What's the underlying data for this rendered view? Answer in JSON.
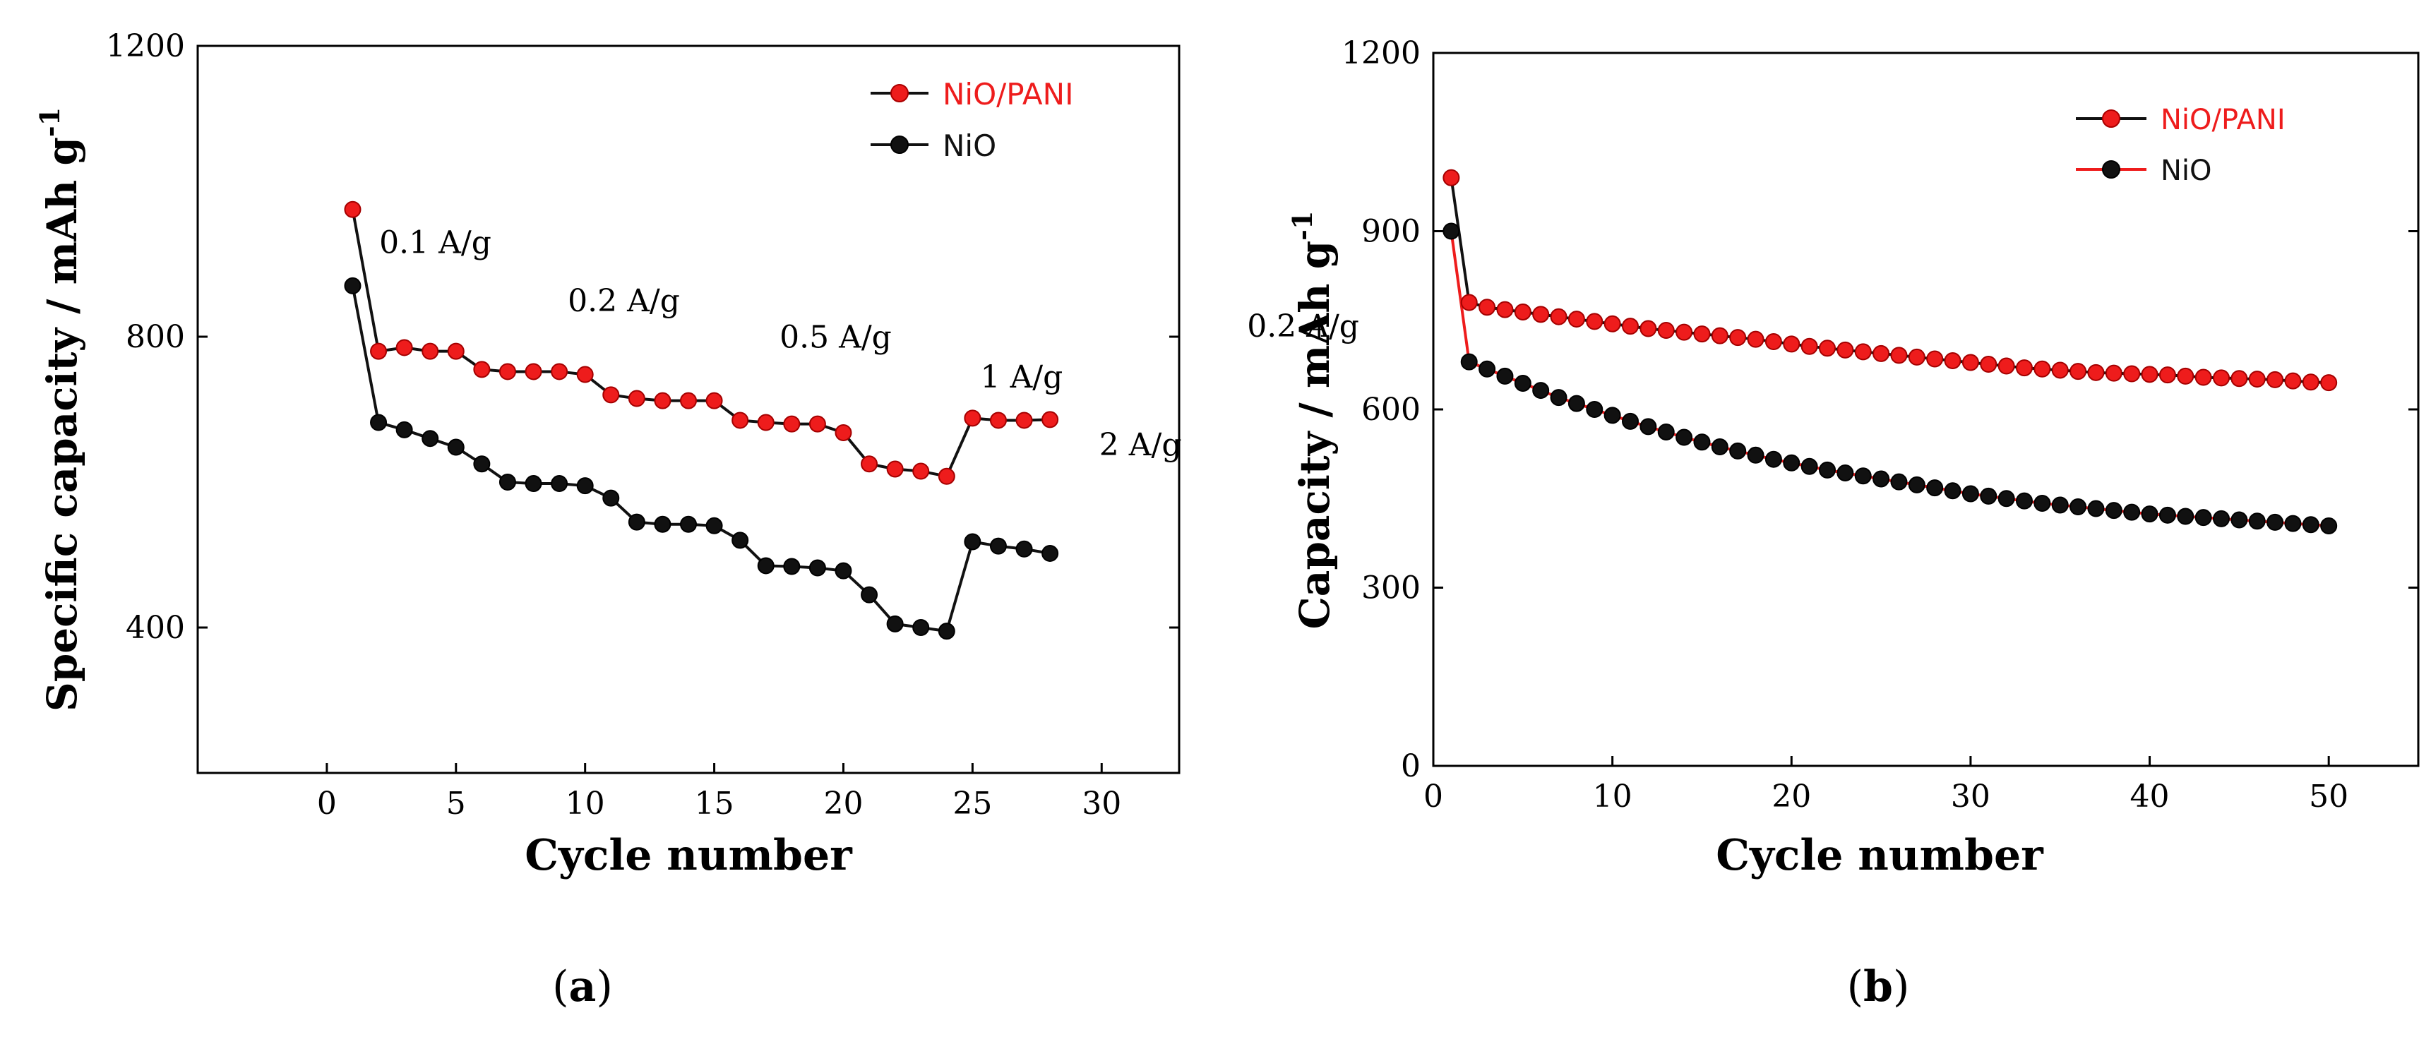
{
  "colors": {
    "red": "#ee1c1c",
    "black": "#111111"
  },
  "chart_data": [
    {
      "type": "line",
      "panel": "a",
      "caption_open": "(",
      "caption_letter": "a",
      "caption_close": ")",
      "xlabel": "Cycle number",
      "ylabel": "Specific capacity / mAh g",
      "ylabel_sup": "-1",
      "xlim": [
        -5,
        33
      ],
      "ylim": [
        200,
        1200
      ],
      "xticks": [
        0,
        5,
        10,
        15,
        20,
        25,
        30
      ],
      "yticks": [
        400,
        800,
        1200
      ],
      "x": [
        1,
        2,
        3,
        4,
        5,
        6,
        7,
        8,
        9,
        10,
        11,
        12,
        13,
        14,
        15,
        16,
        17,
        18,
        19,
        20,
        21,
        22,
        23,
        24,
        25,
        26,
        27,
        28
      ],
      "series": [
        {
          "name": "NiO/PANI",
          "marker_color": "#ee1c1c",
          "line_color": "#111111",
          "legend_text_color": "#ee1c1c",
          "values": [
            975,
            780,
            785,
            780,
            780,
            755,
            752,
            752,
            752,
            748,
            720,
            715,
            712,
            712,
            712,
            685,
            682,
            680,
            680,
            668,
            625,
            618,
            615,
            608,
            688,
            685,
            685,
            686
          ]
        },
        {
          "name": "NiO",
          "marker_color": "#111111",
          "line_color": "#111111",
          "legend_text_color": "#111111",
          "values": [
            870,
            682,
            672,
            660,
            648,
            625,
            600,
            598,
            598,
            595,
            578,
            545,
            542,
            542,
            540,
            520,
            485,
            484,
            482,
            478,
            445,
            405,
            400,
            395,
            518,
            512,
            508,
            502
          ]
        }
      ],
      "annotations": [
        {
          "text": "0.1 A/g",
          "x": 4.2,
          "y": 915
        },
        {
          "text": "0.2 A/g",
          "x": 11.5,
          "y": 835
        },
        {
          "text": "0.5 A/g",
          "x": 19.7,
          "y": 785
        },
        {
          "text": "1 A/g",
          "x": 26.9,
          "y": 730
        },
        {
          "text": "2 A/g",
          "x": 31.5,
          "y": 637
        },
        {
          "text": "0.2 A/g",
          "x": 37.8,
          "y": 800
        }
      ],
      "legend_position": "top-right"
    },
    {
      "type": "line",
      "panel": "b",
      "caption_open": "(",
      "caption_letter": "b",
      "caption_close": ")",
      "xlabel": "Cycle number",
      "ylabel": "Capacity / mAh g",
      "ylabel_sup": "-1",
      "xlim": [
        0,
        55
      ],
      "ylim": [
        0,
        1200
      ],
      "xticks": [
        0,
        10,
        20,
        30,
        40,
        50
      ],
      "yticks": [
        0,
        300,
        600,
        900,
        1200
      ],
      "x": [
        1,
        2,
        3,
        4,
        5,
        6,
        7,
        8,
        9,
        10,
        11,
        12,
        13,
        14,
        15,
        16,
        17,
        18,
        19,
        20,
        21,
        22,
        23,
        24,
        25,
        26,
        27,
        28,
        29,
        30,
        31,
        32,
        33,
        34,
        35,
        36,
        37,
        38,
        39,
        40,
        41,
        42,
        43,
        44,
        45,
        46,
        47,
        48,
        49,
        50
      ],
      "series": [
        {
          "name": "NiO/PANI",
          "marker_color": "#ee1c1c",
          "line_color": "#111111",
          "legend_text_color": "#ee1c1c",
          "values": [
            990,
            780,
            772,
            768,
            764,
            760,
            756,
            752,
            748,
            744,
            740,
            736,
            733,
            730,
            727,
            724,
            721,
            718,
            714,
            710,
            706,
            703,
            700,
            697,
            694,
            691,
            688,
            685,
            682,
            679,
            676,
            673,
            670,
            668,
            666,
            664,
            662,
            661,
            660,
            659,
            658,
            656,
            654,
            653,
            652,
            651,
            650,
            648,
            646,
            645
          ]
        },
        {
          "name": "NiO",
          "marker_color": "#111111",
          "line_color": "#ee1c1c",
          "legend_text_color": "#111111",
          "values": [
            900,
            680,
            668,
            656,
            644,
            632,
            620,
            610,
            600,
            590,
            580,
            571,
            562,
            553,
            545,
            537,
            530,
            523,
            516,
            510,
            504,
            498,
            493,
            488,
            483,
            478,
            473,
            468,
            463,
            458,
            454,
            450,
            446,
            442,
            439,
            436,
            433,
            430,
            427,
            424,
            422,
            420,
            418,
            416,
            414,
            412,
            410,
            408,
            406,
            404
          ]
        }
      ],
      "legend_position": "top-right"
    }
  ]
}
